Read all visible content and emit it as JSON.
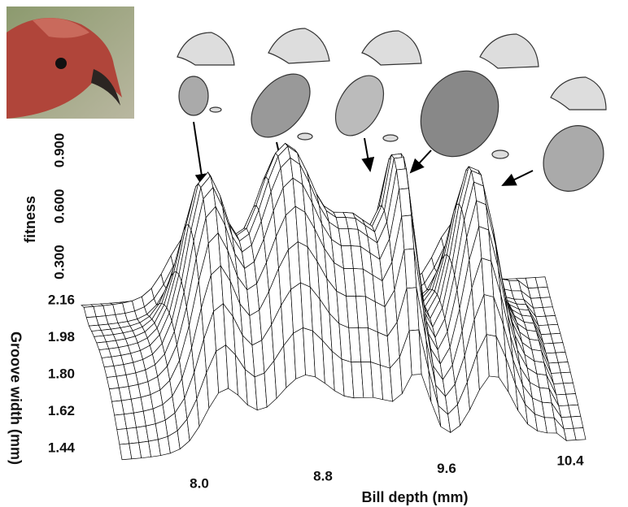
{
  "chart_data": {
    "type": "surface",
    "xlabel": "Bill depth (mm)",
    "ylabel": "Groove width (mm)",
    "zlabel": "fitness",
    "xlim": [
      7.5,
      10.5
    ],
    "xticks": [
      {
        "value": 8,
        "label": "8.0"
      },
      8.8,
      9.6,
      10.4
    ],
    "ylim": [
      1.35,
      2.2
    ],
    "yticks": [
      2.16,
      1.98,
      {
        "value": 1.8,
        "label": "1.80"
      },
      1.62,
      1.44
    ],
    "zlim": [
      0.15,
      1.0
    ],
    "zticks": [
      {
        "value": 0.9,
        "label": "0.900"
      },
      {
        "value": 0.6,
        "label": "0.600"
      },
      {
        "value": 0.3,
        "label": "0.300"
      }
    ]
  }
}
